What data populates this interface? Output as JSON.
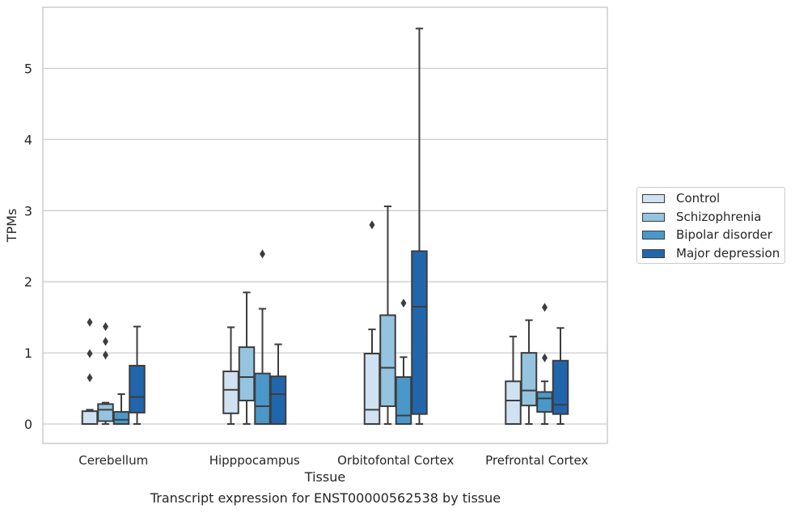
{
  "caption": "Transcript expression for ENST00000562538 by tissue",
  "chart_data": {
    "type": "box",
    "xlabel": "Tissue",
    "ylabel": "TPMs",
    "ylim": [
      -0.27,
      5.87
    ],
    "yticks": [
      0,
      1,
      2,
      3,
      4,
      5
    ],
    "grid": "horizontal",
    "legend_position": "right",
    "categories": [
      "Cerebellum",
      "Hipppocampus",
      "Orbitofontal Cortex",
      "Prefrontal Cortex"
    ],
    "series": [
      {
        "name": "Control",
        "color": "#d0e1f2",
        "boxes": [
          {
            "whisker_low": 0.0,
            "q1": 0.0,
            "median": 0.0,
            "q3": 0.18,
            "whisker_high": 0.2,
            "outliers": [
              0.65,
              0.99,
              1.43
            ]
          },
          {
            "whisker_low": 0.0,
            "q1": 0.15,
            "median": 0.48,
            "q3": 0.74,
            "whisker_high": 1.36,
            "outliers": []
          },
          {
            "whisker_low": 0.0,
            "q1": 0.0,
            "median": 0.2,
            "q3": 0.99,
            "whisker_high": 1.33,
            "outliers": [
              2.8
            ]
          },
          {
            "whisker_low": 0.0,
            "q1": 0.0,
            "median": 0.33,
            "q3": 0.6,
            "whisker_high": 1.23,
            "outliers": []
          }
        ]
      },
      {
        "name": "Schizophrenia",
        "color": "#94c4df",
        "boxes": [
          {
            "whisker_low": 0.0,
            "q1": 0.04,
            "median": 0.2,
            "q3": 0.28,
            "whisker_high": 0.3,
            "outliers": [
              0.97,
              1.16,
              1.37
            ]
          },
          {
            "whisker_low": 0.0,
            "q1": 0.33,
            "median": 0.66,
            "q3": 1.08,
            "whisker_high": 1.85,
            "outliers": []
          },
          {
            "whisker_low": 0.0,
            "q1": 0.25,
            "median": 0.79,
            "q3": 1.53,
            "whisker_high": 3.06,
            "outliers": []
          },
          {
            "whisker_low": 0.0,
            "q1": 0.26,
            "median": 0.47,
            "q3": 1.0,
            "whisker_high": 1.46,
            "outliers": []
          }
        ]
      },
      {
        "name": "Bipolar disorder",
        "color": "#4a98c9",
        "boxes": [
          {
            "whisker_low": 0.0,
            "q1": 0.0,
            "median": 0.06,
            "q3": 0.17,
            "whisker_high": 0.42,
            "outliers": []
          },
          {
            "whisker_low": 0.0,
            "q1": 0.0,
            "median": 0.25,
            "q3": 0.71,
            "whisker_high": 1.62,
            "outliers": [
              2.39
            ]
          },
          {
            "whisker_low": 0.0,
            "q1": 0.0,
            "median": 0.12,
            "q3": 0.66,
            "whisker_high": 0.94,
            "outliers": [
              1.7
            ]
          },
          {
            "whisker_low": 0.0,
            "q1": 0.17,
            "median": 0.36,
            "q3": 0.45,
            "whisker_high": 0.6,
            "outliers": [
              0.93,
              1.64
            ]
          }
        ]
      },
      {
        "name": "Major depression",
        "color": "#2166ac",
        "boxes": [
          {
            "whisker_low": 0.0,
            "q1": 0.16,
            "median": 0.38,
            "q3": 0.82,
            "whisker_high": 1.37,
            "outliers": []
          },
          {
            "whisker_low": 0.0,
            "q1": 0.0,
            "median": 0.42,
            "q3": 0.67,
            "whisker_high": 1.12,
            "outliers": []
          },
          {
            "whisker_low": 0.0,
            "q1": 0.14,
            "median": 1.65,
            "q3": 2.43,
            "whisker_high": 5.56,
            "outliers": []
          },
          {
            "whisker_low": 0.0,
            "q1": 0.14,
            "median": 0.27,
            "q3": 0.89,
            "whisker_high": 1.35,
            "outliers": []
          }
        ]
      }
    ]
  }
}
